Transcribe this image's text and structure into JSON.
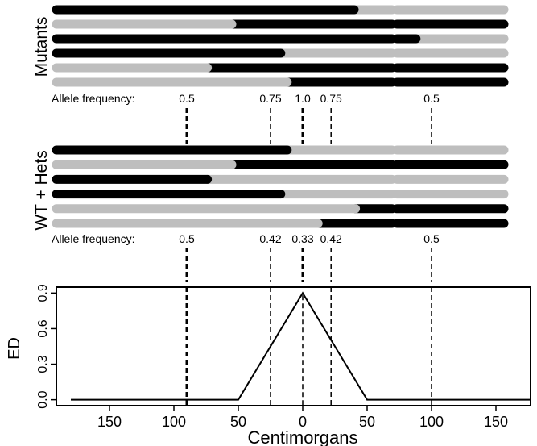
{
  "colors": {
    "mutant_allele": "#000000",
    "wt_allele": "#bebebe",
    "background": "#ffffff"
  },
  "panel_top": {
    "group_label": "Mutants",
    "freq_label": "Allele frequency:",
    "freqs": [
      {
        "pos": 90,
        "text": "0.5"
      },
      {
        "pos": 25,
        "text": "0.75"
      },
      {
        "pos": 0,
        "text": "1.0"
      },
      {
        "pos": -22,
        "text": "0.75"
      },
      {
        "pos": -100,
        "text": "0.5"
      }
    ],
    "chromosomes": [
      {
        "crossover": -40,
        "left": "mutant",
        "right2": "wt"
      },
      {
        "crossover": 55,
        "left": "wt",
        "right2": "mutant"
      },
      {
        "crossover": null,
        "left": "mutant",
        "right2_switch": -88,
        "right2_left": "mutant",
        "right2_right": "wt"
      },
      {
        "crossover": 17,
        "left": "mutant",
        "right2": "wt"
      },
      {
        "crossover": 74,
        "left": "wt",
        "right2": "mutant"
      },
      {
        "crossover": 12,
        "left": "wt",
        "right2": "mutant"
      }
    ]
  },
  "panel_mid": {
    "group_label": "WT + Hets",
    "freq_label": "Allele frequency:",
    "freqs": [
      {
        "pos": 90,
        "text": "0.5"
      },
      {
        "pos": 25,
        "text": "0.42"
      },
      {
        "pos": 0,
        "text": "0.33"
      },
      {
        "pos": -22,
        "text": "0.42"
      },
      {
        "pos": -100,
        "text": "0.5"
      }
    ],
    "chromosomes": [
      {
        "crossover": 12,
        "left": "mutant",
        "right2": "wt"
      },
      {
        "crossover": 55,
        "left": "wt",
        "right2": "mutant"
      },
      {
        "crossover": 74,
        "left": "mutant",
        "right2": "wt"
      },
      {
        "crossover": 17,
        "left": "mutant",
        "right2": "wt"
      },
      {
        "crossover": -41,
        "left": "wt",
        "right2": "mutant"
      },
      {
        "crossover": -12,
        "left": "wt",
        "right2": "mutant"
      }
    ]
  },
  "chart_data": {
    "type": "line",
    "xlabel": "Centimorgans",
    "ylabel": "ED",
    "xlim": [
      180,
      -180
    ],
    "ylim": [
      -0.05,
      0.95
    ],
    "x_ticks": [
      150,
      100,
      50,
      0,
      50,
      100,
      150
    ],
    "x_tick_positions": [
      150,
      100,
      50,
      0,
      -50,
      -100,
      -150
    ],
    "y_ticks": [
      "0.0",
      "0.3",
      "0.6",
      "0.9"
    ],
    "y_tick_values": [
      0.0,
      0.3,
      0.6,
      0.9
    ],
    "series": [
      {
        "x": [
          180,
          50,
          0,
          -50,
          -180
        ],
        "y": [
          0,
          0,
          0.9,
          0,
          0
        ]
      }
    ],
    "marker_lines_x": [
      90,
      25,
      0,
      -22,
      -100
    ],
    "legend": "none",
    "grid": false
  }
}
